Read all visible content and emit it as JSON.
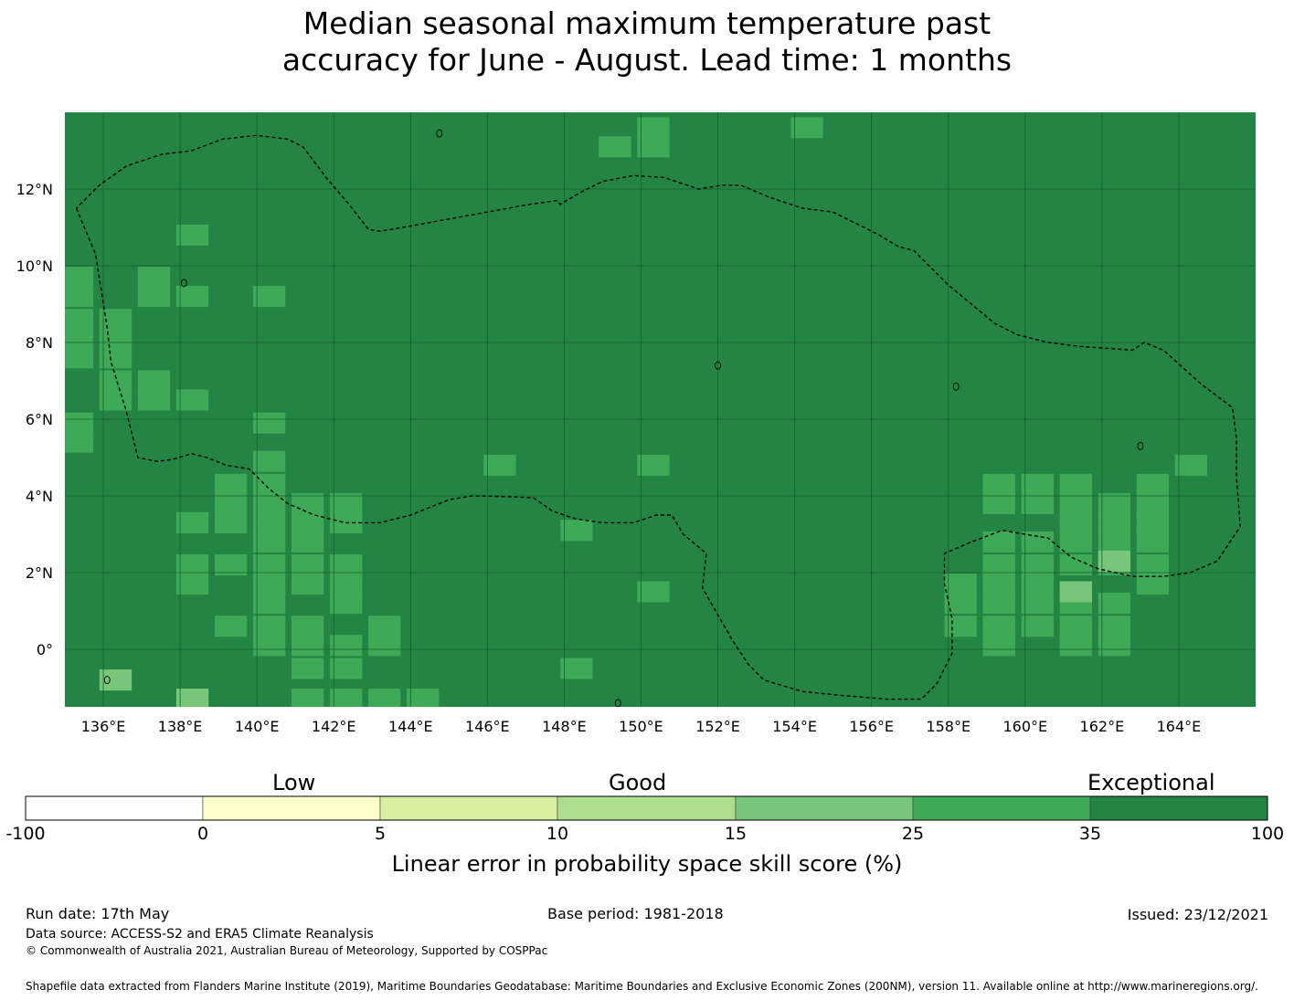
{
  "title": {
    "line1": "Median seasonal maximum temperature past",
    "line2": "accuracy for June - August. Lead time: 1 months"
  },
  "map": {
    "lon_range": [
      135,
      166
    ],
    "lat_range": [
      -1.5,
      14
    ],
    "lon_ticks": [
      "136°E",
      "138°E",
      "140°E",
      "142°E",
      "144°E",
      "146°E",
      "148°E",
      "150°E",
      "152°E",
      "154°E",
      "156°E",
      "158°E",
      "160°E",
      "162°E",
      "164°E"
    ],
    "lat_ticks": [
      "12°N",
      "10°N",
      "8°N",
      "6°N",
      "4°N",
      "2°N",
      "0°"
    ],
    "background_category": "35-100",
    "colors": {
      "c35_100": "#238443",
      "c25_35": "#3eaa57",
      "c15_25": "#78c679",
      "gridline": "#1a5e30",
      "eez_line": "#000000"
    },
    "cells_25_35": [
      [
        150,
        13.6
      ],
      [
        149,
        13.1
      ],
      [
        150,
        13.1
      ],
      [
        154,
        13.6
      ],
      [
        138,
        10.8
      ],
      [
        135,
        9.7
      ],
      [
        137,
        9.7
      ],
      [
        137,
        9.2
      ],
      [
        138,
        9.2
      ],
      [
        135,
        9.2
      ],
      [
        140,
        9.2
      ],
      [
        135,
        8.6
      ],
      [
        136,
        8.6
      ],
      [
        135,
        8.1
      ],
      [
        136,
        8.1
      ],
      [
        135,
        7.6
      ],
      [
        136,
        7.6
      ],
      [
        136,
        7.0
      ],
      [
        137,
        7.0
      ],
      [
        136,
        6.5
      ],
      [
        137,
        6.5
      ],
      [
        138,
        6.5
      ],
      [
        135,
        5.9
      ],
      [
        140,
        5.9
      ],
      [
        135,
        5.4
      ],
      [
        140,
        4.9
      ],
      [
        146,
        4.8
      ],
      [
        150,
        4.8
      ],
      [
        164,
        4.8
      ],
      [
        139,
        4.3
      ],
      [
        140,
        4.3
      ],
      [
        139,
        3.8
      ],
      [
        140,
        3.8
      ],
      [
        141,
        3.8
      ],
      [
        142,
        3.8
      ],
      [
        138,
        3.3
      ],
      [
        139,
        3.3
      ],
      [
        140,
        3.3
      ],
      [
        141,
        3.3
      ],
      [
        142,
        3.3
      ],
      [
        140,
        2.8
      ],
      [
        141,
        2.8
      ],
      [
        138,
        2.2
      ],
      [
        139,
        2.2
      ],
      [
        140,
        2.2
      ],
      [
        141,
        2.2
      ],
      [
        142,
        2.2
      ],
      [
        138,
        1.7
      ],
      [
        140,
        1.7
      ],
      [
        141,
        1.7
      ],
      [
        142,
        1.7
      ],
      [
        140,
        1.2
      ],
      [
        142,
        1.2
      ],
      [
        139,
        0.6
      ],
      [
        140,
        0.6
      ],
      [
        141,
        0.6
      ],
      [
        143,
        0.6
      ],
      [
        140,
        0.1
      ],
      [
        141,
        0.1
      ],
      [
        142,
        0.1
      ],
      [
        143,
        0.1
      ],
      [
        141,
        -0.5
      ],
      [
        142,
        -0.5
      ],
      [
        148,
        -0.5
      ],
      [
        141,
        -1.3
      ],
      [
        142,
        -1.3
      ],
      [
        143,
        -1.3
      ],
      [
        144,
        -1.3
      ],
      [
        148,
        3.1
      ],
      [
        150,
        1.5
      ],
      [
        159,
        4.3
      ],
      [
        160,
        4.3
      ],
      [
        161,
        4.3
      ],
      [
        163,
        4.3
      ],
      [
        159,
        3.8
      ],
      [
        160,
        3.8
      ],
      [
        161,
        3.8
      ],
      [
        162,
        3.8
      ],
      [
        163,
        3.8
      ],
      [
        161,
        3.3
      ],
      [
        162,
        3.3
      ],
      [
        163,
        3.3
      ],
      [
        159,
        2.8
      ],
      [
        160,
        2.8
      ],
      [
        161,
        2.8
      ],
      [
        162,
        2.8
      ],
      [
        163,
        2.8
      ],
      [
        159,
        2.2
      ],
      [
        160,
        2.2
      ],
      [
        161,
        2.2
      ],
      [
        162,
        2.2
      ],
      [
        163,
        2.2
      ],
      [
        158,
        1.7
      ],
      [
        159,
        1.7
      ],
      [
        160,
        1.7
      ],
      [
        163,
        1.7
      ],
      [
        158,
        1.2
      ],
      [
        159,
        1.2
      ],
      [
        160,
        1.2
      ],
      [
        161,
        1.2
      ],
      [
        162,
        1.2
      ],
      [
        158,
        0.6
      ],
      [
        159,
        0.6
      ],
      [
        160,
        0.6
      ],
      [
        161,
        0.6
      ],
      [
        162,
        0.6
      ],
      [
        159,
        0.1
      ],
      [
        161,
        0.1
      ],
      [
        162,
        0.1
      ]
    ],
    "cells_15_25": [
      [
        162,
        2.3
      ],
      [
        161,
        1.5
      ],
      [
        136,
        -0.8
      ],
      [
        138,
        -1.3
      ]
    ],
    "eez_boundary": [
      [
        135.3,
        11.5
      ],
      [
        135.8,
        10.3
      ],
      [
        136.1,
        8.4
      ],
      [
        136.2,
        7.5
      ],
      [
        136.6,
        6.2
      ],
      [
        136.9,
        5.0
      ],
      [
        137.4,
        4.9
      ],
      [
        137.8,
        4.95
      ],
      [
        138.3,
        5.1
      ],
      [
        138.7,
        5.0
      ],
      [
        139.2,
        4.8
      ],
      [
        139.8,
        4.7
      ],
      [
        140.3,
        4.2
      ],
      [
        140.8,
        3.8
      ],
      [
        141.5,
        3.5
      ],
      [
        142.3,
        3.3
      ],
      [
        143.2,
        3.3
      ],
      [
        144,
        3.5
      ],
      [
        145,
        3.9
      ],
      [
        145.6,
        4.0
      ],
      [
        146.5,
        3.98
      ],
      [
        147.2,
        3.95
      ],
      [
        147.7,
        3.6
      ],
      [
        148.3,
        3.4
      ],
      [
        149,
        3.3
      ],
      [
        149.8,
        3.3
      ],
      [
        150.4,
        3.5
      ],
      [
        150.8,
        3.5
      ],
      [
        151.1,
        3.0
      ],
      [
        151.7,
        2.5
      ],
      [
        151.6,
        1.6
      ],
      [
        152,
        0.9
      ],
      [
        152.4,
        0.2
      ],
      [
        152.8,
        -0.4
      ],
      [
        153.2,
        -0.8
      ],
      [
        154.2,
        -1.1
      ],
      [
        155.2,
        -1.2
      ],
      [
        156.4,
        -1.3
      ],
      [
        157.3,
        -1.3
      ],
      [
        157.7,
        -0.9
      ],
      [
        158.1,
        -0.1
      ],
      [
        158.1,
        0.8
      ],
      [
        157.9,
        1.7
      ],
      [
        157.9,
        2.5
      ],
      [
        158.6,
        2.8
      ],
      [
        159.4,
        3.1
      ],
      [
        160,
        3.0
      ],
      [
        160.6,
        2.9
      ],
      [
        161.2,
        2.4
      ],
      [
        161.9,
        2.1
      ],
      [
        162.8,
        1.9
      ],
      [
        163.6,
        1.9
      ],
      [
        164.3,
        2.0
      ],
      [
        165.0,
        2.3
      ],
      [
        165.6,
        3.2
      ],
      [
        165.5,
        4.5
      ],
      [
        165.5,
        5.5
      ],
      [
        165.4,
        6.3
      ],
      [
        164.6,
        6.9
      ],
      [
        163.6,
        7.8
      ],
      [
        163.1,
        8.0
      ],
      [
        162.8,
        7.8
      ],
      [
        161.4,
        7.9
      ],
      [
        160.6,
        8.0
      ],
      [
        159.8,
        8.2
      ],
      [
        159.2,
        8.5
      ],
      [
        158.6,
        9.0
      ],
      [
        158,
        9.5
      ],
      [
        157.5,
        10.0
      ],
      [
        157.1,
        10.4
      ],
      [
        156.7,
        10.5
      ],
      [
        156.2,
        10.8
      ],
      [
        155.6,
        11.1
      ],
      [
        155.0,
        11.4
      ],
      [
        154.2,
        11.5
      ],
      [
        153.3,
        11.8
      ],
      [
        152.6,
        12.1
      ],
      [
        152.1,
        12.1
      ],
      [
        151.5,
        12.0
      ],
      [
        150.6,
        12.3
      ],
      [
        149.8,
        12.35
      ],
      [
        149.0,
        12.2
      ],
      [
        148.4,
        11.9
      ],
      [
        147.9,
        11.6
      ],
      [
        147.8,
        11.7
      ],
      [
        147.1,
        11.6
      ],
      [
        146.0,
        11.4
      ],
      [
        144.9,
        11.2
      ],
      [
        143.8,
        11.0
      ],
      [
        143.5,
        10.95
      ],
      [
        143.2,
        10.9
      ],
      [
        142.9,
        10.95
      ],
      [
        142.4,
        11.6
      ],
      [
        141.8,
        12.3
      ],
      [
        141.2,
        13.1
      ],
      [
        140.8,
        13.3
      ],
      [
        140.0,
        13.4
      ],
      [
        139.1,
        13.3
      ],
      [
        138.3,
        13.0
      ],
      [
        137.5,
        12.9
      ],
      [
        136.6,
        12.6
      ],
      [
        135.9,
        12.1
      ],
      [
        135.3,
        11.5
      ]
    ],
    "islands": [
      [
        144.75,
        13.45
      ],
      [
        138.1,
        9.55
      ],
      [
        136.1,
        -0.8
      ],
      [
        152.0,
        7.4
      ],
      [
        158.2,
        6.85
      ],
      [
        163.0,
        5.3
      ],
      [
        149.4,
        -1.4
      ]
    ]
  },
  "colorbar": {
    "boundaries": [
      "-100",
      "0",
      "5",
      "10",
      "15",
      "25",
      "35",
      "100"
    ],
    "colors": [
      "#ffffff",
      "#ffffcc",
      "#d9f0a3",
      "#addd8e",
      "#78c679",
      "#3eaa57",
      "#238443"
    ],
    "category_labels": [
      "Low",
      "Good",
      "Exceptional"
    ],
    "axis_label": "Linear error in probability space skill score (%)"
  },
  "footer": {
    "run_date": "Run date: 17th May",
    "base_period": "Base period: 1981-2018",
    "issued": "Issued: 23/12/2021",
    "data_source": "Data source: ACCESS-S2 and ERA5 Climate Reanalysis",
    "copyright": "© Commonwealth of Australia 2021, Australian Bureau of Meteorology, Supported by COSPPac",
    "shapefile": "Shapefile data extracted from Flanders Marine Institute (2019), Maritime Boundaries Geodatabase: Maritime Boundaries and Exclusive Economic Zones (200NM), version 11. Available online at http://www.marineregions.org/."
  }
}
